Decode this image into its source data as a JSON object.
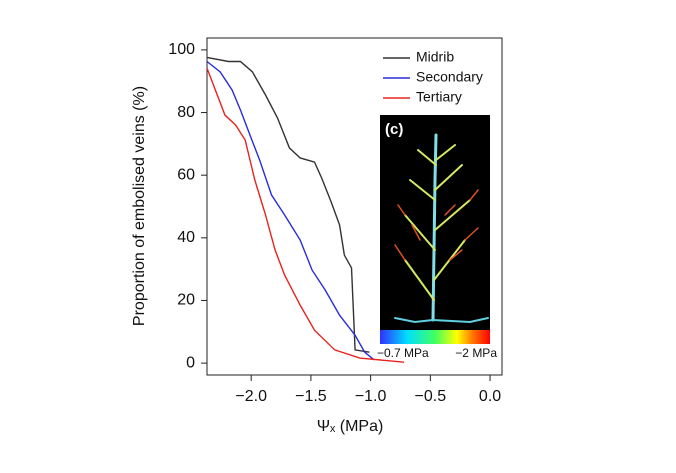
{
  "chart_data": {
    "type": "line",
    "xlabel": "Ψₓ (MPa)",
    "ylabel": "Proportion of embolised veins (%)",
    "xlim": [
      -2.37,
      0.1
    ],
    "ylim": [
      -3.8,
      103.8
    ],
    "xticks": [
      {
        "value": -2.0,
        "label": "−2.0"
      },
      {
        "value": -1.5,
        "label": "−1.5"
      },
      {
        "value": -1.0,
        "label": "−1.0"
      },
      {
        "value": -0.5,
        "label": "−0.5"
      },
      {
        "value": 0.0,
        "label": "0.0"
      }
    ],
    "yticks": [
      0,
      20,
      40,
      60,
      80,
      100
    ],
    "legend": "top-right",
    "series": [
      {
        "name": "Midrib",
        "color": "#333333",
        "x": [
          -2.37,
          -2.19,
          -2.09,
          -1.99,
          -1.88,
          -1.78,
          -1.68,
          -1.59,
          -1.47,
          -1.41,
          -1.33,
          -1.26,
          -1.22,
          -1.16,
          -1.13,
          -1.01
        ],
        "values": [
          97.6,
          96.3,
          96.3,
          93,
          85.6,
          78.3,
          68.7,
          65.5,
          64.2,
          59.1,
          51.4,
          44.1,
          34.5,
          30.4,
          4.2,
          3.5
        ]
      },
      {
        "name": "Secondary",
        "color": "#2b2bdc",
        "x": [
          -2.37,
          -2.26,
          -2.16,
          -2.09,
          -2.01,
          -1.93,
          -1.83,
          -1.72,
          -1.59,
          -1.49,
          -1.38,
          -1.26,
          -1.13,
          -1.05,
          -0.97
        ],
        "values": [
          96.3,
          93,
          87.2,
          80.8,
          72.8,
          64.9,
          53.7,
          47.3,
          39.3,
          29.7,
          23.3,
          15.3,
          8.9,
          3.5,
          1
        ]
      },
      {
        "name": "Tertiary",
        "color": "#e8231f",
        "x": [
          -2.37,
          -2.3,
          -2.22,
          -2.13,
          -2.05,
          -1.97,
          -1.88,
          -1.8,
          -1.72,
          -1.59,
          -1.47,
          -1.3,
          -1.09,
          -0.72
        ],
        "values": [
          94.2,
          87.2,
          79.2,
          76,
          71.2,
          58.5,
          47.3,
          36.1,
          28.1,
          18.5,
          10.5,
          4.2,
          1.6,
          0.3
        ]
      }
    ],
    "inset": {
      "panel_label": "(c)",
      "scale_low": "−0.7 MPa",
      "scale_high": "−2 MPa"
    }
  }
}
